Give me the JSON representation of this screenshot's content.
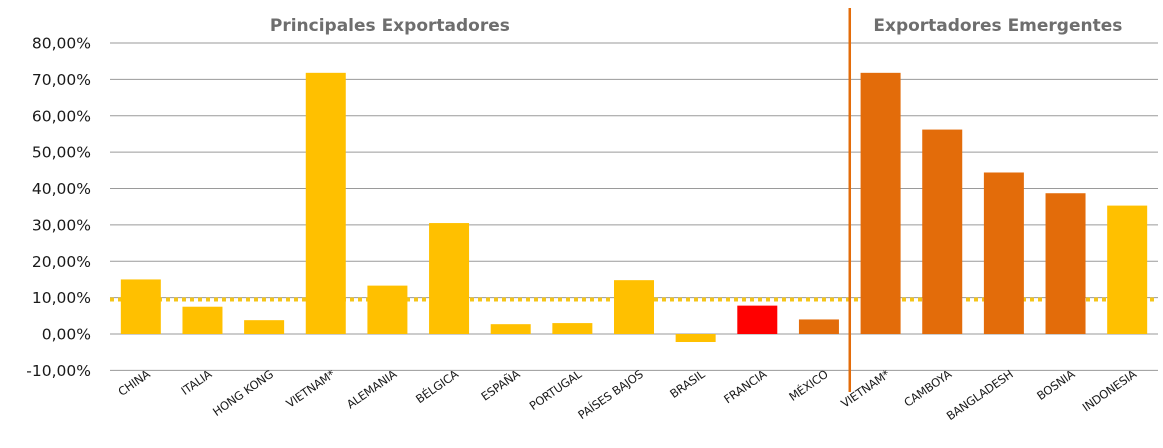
{
  "chart_data": {
    "type": "bar",
    "title": "",
    "xlabel": "",
    "ylabel": "",
    "ylim": [
      -10,
      80
    ],
    "y_ticks": [
      80,
      70,
      60,
      50,
      40,
      30,
      20,
      10,
      0,
      -10
    ],
    "y_tick_labels": [
      "80,00%",
      "70,00%",
      "60,00%",
      "50,00%",
      "40,00%",
      "30,00%",
      "20,00%",
      "10,00%",
      "0,00%",
      "-10,00%"
    ],
    "grid": "horizontal",
    "reference_line": {
      "value": 9.5,
      "style": "dotted",
      "color": "#F5C518"
    },
    "groups": [
      {
        "label": "Principales Exportadores",
        "start_index": 0,
        "end_index": 11
      },
      {
        "label": "Exportadores Emergentes",
        "start_index": 12,
        "end_index": 16
      }
    ],
    "categories": [
      "CHINA",
      "ITALIA",
      "HONG KONG",
      "VIETNAM*",
      "ALEMANIA",
      "BÉLGICA",
      "ESPAÑA",
      "PORTUGAL",
      "PAÍSES BAJOS",
      "BRASIL",
      "FRANCIA",
      "MÉXICO",
      "VIETNAM*",
      "CAMBOYA",
      "BANGLADESH",
      "BOSNIA",
      "INDONESIA"
    ],
    "values": [
      15.0,
      7.5,
      3.8,
      71.8,
      13.3,
      30.5,
      2.7,
      3.0,
      14.8,
      -2.2,
      7.8,
      4.0,
      71.8,
      56.2,
      44.4,
      38.7,
      35.3
    ],
    "colors": [
      "#FFC000",
      "#FFC000",
      "#FFC000",
      "#FFC000",
      "#FFC000",
      "#FFC000",
      "#FFC000",
      "#FFC000",
      "#FFC000",
      "#FFC000",
      "#FF0000",
      "#E36C0A",
      "#E36C0A",
      "#E36C0A",
      "#E36C0A",
      "#E36C0A",
      "#FFC000"
    ],
    "divider_color": "#E36C0A"
  }
}
